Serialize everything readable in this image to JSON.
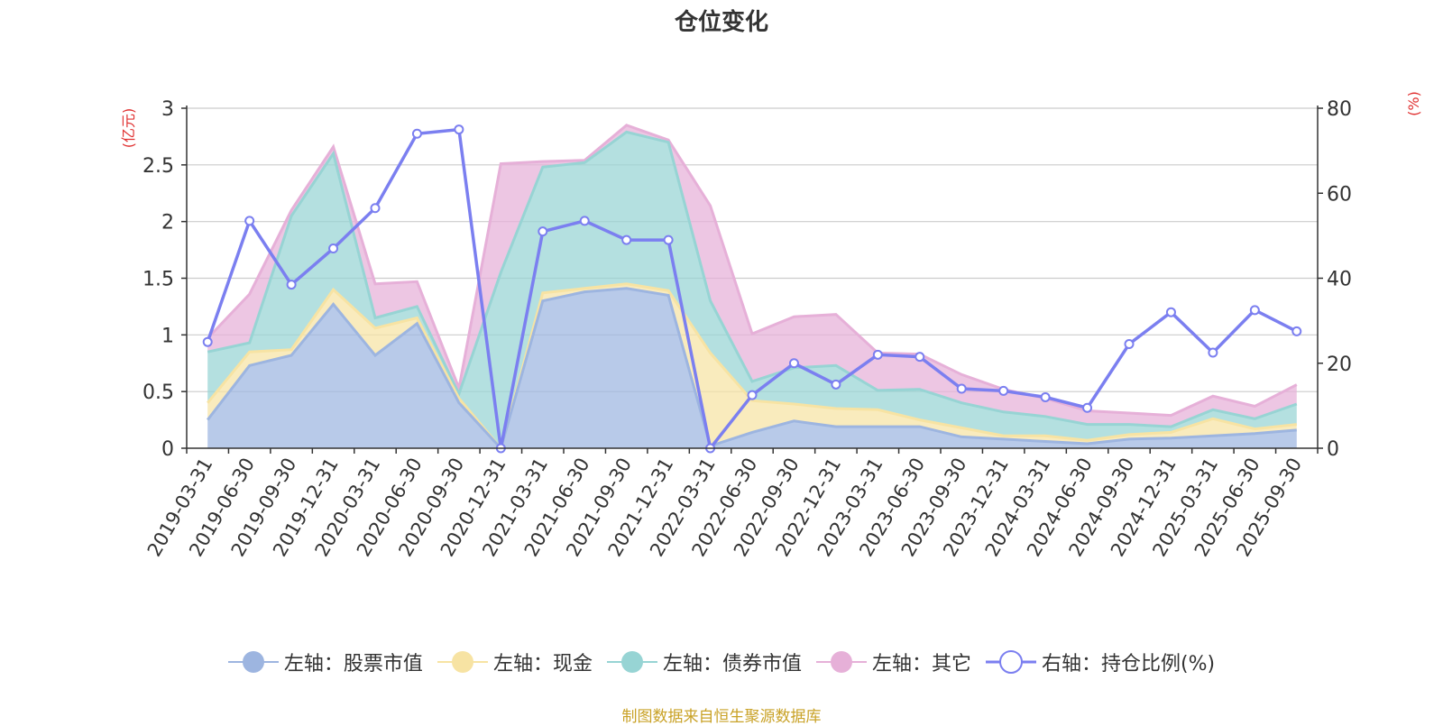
{
  "chart_data": {
    "type": "area",
    "title": "仓位变化",
    "left_unit": "(亿元)",
    "right_unit": "(%)",
    "ylim_left": [
      0,
      3
    ],
    "ylim_right": [
      0,
      80
    ],
    "left_ticks": [
      "0",
      "0.5",
      "1",
      "1.5",
      "2",
      "2.5",
      "3"
    ],
    "right_ticks": [
      "0",
      "20",
      "40",
      "60",
      "80"
    ],
    "categories": [
      "2019-03-31",
      "2019-06-30",
      "2019-09-30",
      "2019-12-31",
      "2020-03-31",
      "2020-06-30",
      "2020-09-30",
      "2020-12-31",
      "2021-03-31",
      "2021-06-30",
      "2021-09-30",
      "2021-12-31",
      "2022-03-31",
      "2022-06-30",
      "2022-09-30",
      "2022-12-31",
      "2023-03-31",
      "2023-06-30",
      "2023-09-30",
      "2023-12-31",
      "2024-03-31",
      "2024-06-30",
      "2024-09-30",
      "2024-12-31",
      "2025-03-31",
      "2025-06-30",
      "2025-09-30"
    ],
    "series": [
      {
        "name": "左轴：股票市值",
        "axis": "left",
        "kind": "area",
        "color": "#9db5e0",
        "values": [
          0.25,
          0.73,
          0.82,
          1.27,
          0.82,
          1.1,
          0.4,
          0,
          1.3,
          1.38,
          1.41,
          1.35,
          0.02,
          0.14,
          0.24,
          0.19,
          0.19,
          0.19,
          0.1,
          0.08,
          0.06,
          0.04,
          0.08,
          0.09,
          0.11,
          0.13,
          0.16
        ]
      },
      {
        "name": "左轴：现金",
        "axis": "left",
        "kind": "area",
        "color": "#f7e3a3",
        "values": [
          0.15,
          0.12,
          0.05,
          0.13,
          0.24,
          0.05,
          0.04,
          0,
          0.07,
          0.03,
          0.04,
          0.04,
          0.82,
          0.28,
          0.15,
          0.16,
          0.15,
          0.06,
          0.08,
          0.03,
          0.05,
          0.03,
          0.04,
          0.05,
          0.15,
          0.04,
          0.05
        ]
      },
      {
        "name": "左轴：债券市值",
        "axis": "left",
        "kind": "area",
        "color": "#97d4d4",
        "values": [
          0.45,
          0.08,
          1.18,
          1.2,
          0.09,
          0.1,
          0.04,
          1.55,
          1.11,
          1.11,
          1.34,
          1.31,
          0.46,
          0.17,
          0.32,
          0.38,
          0.17,
          0.27,
          0.22,
          0.21,
          0.17,
          0.14,
          0.09,
          0.05,
          0.08,
          0.09,
          0.18
        ]
      },
      {
        "name": "左轴：其它",
        "axis": "left",
        "kind": "area",
        "color": "#e6b0d8",
        "values": [
          0.12,
          0.43,
          0.05,
          0.06,
          0.3,
          0.22,
          0.05,
          0.96,
          0.05,
          0.02,
          0.06,
          0.02,
          0.84,
          0.42,
          0.45,
          0.45,
          0.33,
          0.31,
          0.25,
          0.2,
          0.16,
          0.12,
          0.1,
          0.1,
          0.12,
          0.11,
          0.17
        ]
      },
      {
        "name": "右轴：持仓比例(%)",
        "axis": "right",
        "kind": "line",
        "color": "#7b7ff0",
        "values": [
          25,
          53.5,
          38.5,
          47,
          56.5,
          74,
          75,
          0,
          51,
          53.5,
          49,
          49,
          0,
          12.5,
          20,
          15,
          22,
          21.5,
          14,
          13.5,
          12,
          9.5,
          24.5,
          32,
          22.5,
          32.5,
          27.5
        ]
      }
    ]
  },
  "source_note": "制图数据来自恒生聚源数据库"
}
